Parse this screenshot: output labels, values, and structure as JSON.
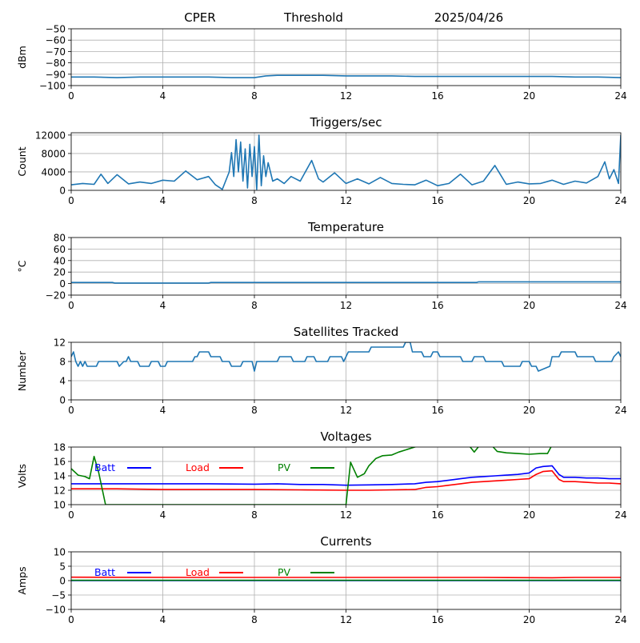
{
  "header": {
    "site": "CPER",
    "threshold_label": "Threshold",
    "date": "2025/04/26"
  },
  "colors": {
    "series_default": "#1f77b4",
    "batt": "#0000ff",
    "load": "#ff0000",
    "pv": "#008000",
    "grid": "#b0b0b0"
  },
  "chart_data": [
    {
      "id": "dbm",
      "type": "line",
      "title": "",
      "xlabel": "",
      "ylabel": "dBm",
      "xlim": [
        0,
        24
      ],
      "ylim": [
        -100,
        -50
      ],
      "xticks": [
        0,
        4,
        8,
        12,
        16,
        20,
        24
      ],
      "yticks": [
        -100,
        -90,
        -80,
        -70,
        -60,
        -50
      ],
      "grid": true,
      "series": [
        {
          "color": "#1f77b4",
          "x": [
            0,
            1,
            2,
            3,
            4,
            5,
            6,
            7,
            8,
            8.5,
            9,
            9.5,
            10,
            10.5,
            11,
            12,
            13,
            14,
            15,
            16,
            17,
            18,
            19,
            20,
            21,
            22,
            23,
            24
          ],
          "y": [
            -92.5,
            -92.5,
            -93,
            -92.5,
            -92.5,
            -92.5,
            -92.5,
            -93,
            -93,
            -91.5,
            -91,
            -91,
            -91,
            -91,
            -91,
            -91.5,
            -91.5,
            -91.5,
            -92,
            -92,
            -92,
            -92,
            -92,
            -92,
            -92,
            -92.5,
            -92.5,
            -93
          ]
        }
      ]
    },
    {
      "id": "triggers",
      "type": "line",
      "title": "Triggers/sec",
      "xlabel": "",
      "ylabel": "Count",
      "xlim": [
        0,
        24
      ],
      "ylim": [
        0,
        12500
      ],
      "xticks": [
        0,
        4,
        8,
        12,
        16,
        20,
        24
      ],
      "yticks": [
        0,
        4000,
        8000,
        12000
      ],
      "grid": true,
      "series": [
        {
          "color": "#1f77b4",
          "x": [
            0,
            0.5,
            1,
            1.3,
            1.6,
            2,
            2.5,
            3,
            3.5,
            4,
            4.5,
            5,
            5.5,
            6,
            6.3,
            6.6,
            6.9,
            7,
            7.1,
            7.2,
            7.3,
            7.4,
            7.5,
            7.6,
            7.7,
            7.8,
            7.9,
            8,
            8.1,
            8.2,
            8.3,
            8.4,
            8.5,
            8.6,
            8.8,
            9,
            9.3,
            9.6,
            10,
            10.5,
            10.8,
            11,
            11.5,
            12,
            12.5,
            13,
            13.5,
            14,
            14.5,
            15,
            15.5,
            16,
            16.5,
            17,
            17.5,
            18,
            18.5,
            19,
            19.5,
            20,
            20.5,
            21,
            21.5,
            22,
            22.5,
            23,
            23.3,
            23.5,
            23.7,
            23.9,
            24
          ],
          "y": [
            1200,
            1500,
            1300,
            3500,
            1500,
            3400,
            1400,
            1800,
            1500,
            2200,
            2000,
            4200,
            2300,
            3000,
            1200,
            200,
            4000,
            8200,
            3000,
            11000,
            4000,
            10500,
            2000,
            9000,
            500,
            10000,
            3000,
            9500,
            200,
            12000,
            1000,
            7500,
            3000,
            6000,
            2000,
            2500,
            1500,
            3000,
            2000,
            6500,
            2500,
            1800,
            3800,
            1500,
            2500,
            1400,
            2800,
            1500,
            1300,
            1200,
            2200,
            1000,
            1500,
            3500,
            1200,
            2000,
            5400,
            1300,
            1800,
            1400,
            1500,
            2200,
            1300,
            2000,
            1600,
            3000,
            6200,
            2500,
            4500,
            1500,
            12000
          ]
        }
      ]
    },
    {
      "id": "temperature",
      "type": "line",
      "title": "Temperature",
      "xlabel": "",
      "ylabel": "°C",
      "xlim": [
        0,
        24
      ],
      "ylim": [
        -20,
        80
      ],
      "xticks": [
        0,
        4,
        8,
        12,
        16,
        20,
        24
      ],
      "yticks": [
        -20,
        0,
        20,
        40,
        60,
        80
      ],
      "grid": true,
      "series": [
        {
          "color": "#1f77b4",
          "x": [
            0,
            1.8,
            1.9,
            6,
            6.1,
            17.7,
            17.8,
            24
          ],
          "y": [
            2,
            2,
            1,
            1,
            2,
            2,
            3,
            3
          ]
        }
      ]
    },
    {
      "id": "satellites",
      "type": "line",
      "title": "Satellites Tracked",
      "xlabel": "",
      "ylabel": "Number",
      "xlim": [
        0,
        24
      ],
      "ylim": [
        0,
        12
      ],
      "xticks": [
        0,
        4,
        8,
        12,
        16,
        20,
        24
      ],
      "yticks": [
        0,
        4,
        8,
        12
      ],
      "grid": true,
      "series": [
        {
          "color": "#1f77b4",
          "x": [
            0,
            0.1,
            0.2,
            0.3,
            0.4,
            0.5,
            0.6,
            0.7,
            1.1,
            1.2,
            2,
            2.1,
            2.3,
            2.4,
            2.5,
            2.6,
            2.9,
            3,
            3.4,
            3.5,
            3.8,
            3.9,
            4.1,
            4.2,
            4.4,
            4.5,
            5.3,
            5.4,
            5.5,
            5.6,
            6,
            6.1,
            6.5,
            6.6,
            6.9,
            7,
            7.4,
            7.5,
            7.9,
            8,
            8.1,
            8.2,
            9,
            9.1,
            9.6,
            9.7,
            10.2,
            10.3,
            10.6,
            10.7,
            11.2,
            11.3,
            11.8,
            11.9,
            12,
            12.1,
            13,
            13.1,
            14.5,
            14.6,
            14.8,
            14.9,
            15.3,
            15.4,
            15.7,
            15.8,
            16,
            16.1,
            17,
            17.1,
            17.5,
            17.6,
            18,
            18.1,
            18.8,
            18.9,
            19.6,
            19.7,
            20,
            20.1,
            20.3,
            20.4,
            20.9,
            21,
            21.3,
            21.4,
            22,
            22.1,
            22.8,
            22.9,
            23.6,
            23.7,
            23.9,
            24
          ],
          "y": [
            9,
            10,
            8,
            7,
            8,
            7,
            8,
            7,
            7,
            8,
            8,
            7,
            8,
            8,
            9,
            8,
            8,
            7,
            7,
            8,
            8,
            7,
            7,
            8,
            8,
            8,
            8,
            9,
            9,
            10,
            10,
            9,
            9,
            8,
            8,
            7,
            7,
            8,
            8,
            6,
            8,
            8,
            8,
            9,
            9,
            8,
            8,
            9,
            9,
            8,
            8,
            9,
            9,
            8,
            9,
            10,
            10,
            11,
            11,
            12,
            12,
            10,
            10,
            9,
            9,
            10,
            10,
            9,
            9,
            8,
            8,
            9,
            9,
            8,
            8,
            7,
            7,
            8,
            8,
            7,
            7,
            6,
            7,
            9,
            9,
            10,
            10,
            9,
            9,
            8,
            8,
            9,
            10,
            9
          ]
        }
      ]
    },
    {
      "id": "voltages",
      "type": "line",
      "title": "Voltages",
      "xlabel": "",
      "ylabel": "Volts",
      "xlim": [
        0,
        24
      ],
      "ylim": [
        10,
        18
      ],
      "xticks": [
        0,
        4,
        8,
        12,
        16,
        20,
        24
      ],
      "yticks": [
        10,
        12,
        14,
        16,
        18
      ],
      "grid": true,
      "series": [
        {
          "name": "Batt",
          "color": "#0000ff",
          "x": [
            0,
            2,
            4,
            6,
            8,
            9,
            10,
            11,
            12,
            13,
            14,
            15,
            15.5,
            16,
            16.5,
            17,
            17.5,
            18,
            18.5,
            19,
            19.5,
            20,
            20.3,
            20.6,
            21,
            21.3,
            21.5,
            22,
            22.5,
            23,
            23.5,
            24
          ],
          "y": [
            12.9,
            12.9,
            12.9,
            12.9,
            12.85,
            12.9,
            12.8,
            12.8,
            12.7,
            12.75,
            12.8,
            12.9,
            13.1,
            13.2,
            13.4,
            13.6,
            13.8,
            13.9,
            14,
            14.1,
            14.2,
            14.4,
            15.1,
            15.3,
            15.4,
            14.2,
            13.8,
            13.8,
            13.7,
            13.7,
            13.6,
            13.6
          ]
        },
        {
          "name": "Load",
          "color": "#ff0000",
          "x": [
            0,
            2,
            4,
            6,
            8,
            10,
            12,
            13,
            14,
            15,
            15.5,
            16,
            16.5,
            17,
            17.5,
            18,
            18.5,
            19,
            19.5,
            20,
            20.3,
            20.6,
            21,
            21.3,
            21.5,
            22,
            22.5,
            23,
            23.5,
            24
          ],
          "y": [
            12.2,
            12.2,
            12.1,
            12.1,
            12.1,
            12.05,
            12,
            12,
            12.05,
            12.1,
            12.4,
            12.5,
            12.7,
            12.9,
            13.1,
            13.2,
            13.3,
            13.4,
            13.5,
            13.6,
            14.2,
            14.6,
            14.7,
            13.5,
            13.2,
            13.2,
            13.1,
            13,
            13,
            12.9
          ]
        },
        {
          "name": "PV",
          "color": "#008000",
          "x": [
            0,
            0.3,
            0.6,
            0.8,
            1,
            1.2,
            1.5,
            12,
            12.2,
            12.5,
            12.8,
            13,
            13.3,
            13.6,
            14,
            14.3,
            14.6,
            15,
            15.3,
            17.4,
            17.6,
            17.8,
            18.4,
            18.6,
            19,
            19.5,
            20,
            20.5,
            20.8,
            21
          ],
          "y": [
            15,
            14.1,
            13.9,
            13.6,
            16.7,
            14.5,
            10,
            10,
            15.9,
            13.8,
            14.3,
            15.4,
            16.4,
            16.8,
            16.9,
            17.3,
            17.6,
            18,
            18.3,
            18.1,
            17.3,
            18.1,
            18.1,
            17.4,
            17.2,
            17.1,
            17,
            17.1,
            17.1,
            18.3
          ]
        }
      ],
      "legend": "top-left, inside"
    },
    {
      "id": "currents",
      "type": "line",
      "title": "Currents",
      "xlabel": "",
      "ylabel": "Amps",
      "xlim": [
        0,
        24
      ],
      "ylim": [
        -10,
        10
      ],
      "xticks": [
        0,
        4,
        8,
        12,
        16,
        20,
        24
      ],
      "yticks": [
        -10,
        -5,
        0,
        5,
        10
      ],
      "grid": true,
      "series": [
        {
          "name": "Batt",
          "color": "#0000ff",
          "x": [
            0,
            24
          ],
          "y": [
            0,
            0
          ]
        },
        {
          "name": "Load",
          "color": "#ff0000",
          "x": [
            0,
            6,
            12,
            18,
            21,
            22,
            24
          ],
          "y": [
            1.2,
            1.1,
            1.1,
            1.1,
            1.0,
            1.1,
            1.1
          ]
        },
        {
          "name": "PV",
          "color": "#008000",
          "x": [
            0,
            24
          ],
          "y": [
            0.1,
            0.1
          ]
        }
      ],
      "legend": "top-left, inside"
    }
  ]
}
